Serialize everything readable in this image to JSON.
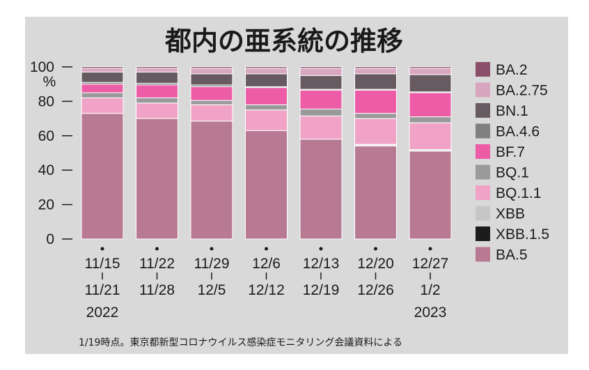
{
  "chart_data": {
    "type": "bar",
    "stacked": true,
    "title": "都内の亜系統の推移",
    "y_unit": "%",
    "ylim": [
      0,
      100
    ],
    "yticks": [
      0,
      20,
      40,
      60,
      80,
      100
    ],
    "categories": [
      {
        "start": "11/15",
        "end": "11/21",
        "year": "2022"
      },
      {
        "start": "11/22",
        "end": "11/28",
        "year": ""
      },
      {
        "start": "11/29",
        "end": "12/5",
        "year": ""
      },
      {
        "start": "12/6",
        "end": "12/12",
        "year": ""
      },
      {
        "start": "12/13",
        "end": "12/19",
        "year": ""
      },
      {
        "start": "12/20",
        "end": "12/26",
        "year": ""
      },
      {
        "start": "12/27",
        "end": "1/2",
        "year": "2023"
      }
    ],
    "series": [
      {
        "name": "BA.5",
        "color": "#b87993",
        "values": [
          73.0,
          70.0,
          68.5,
          63.0,
          58.0,
          54.0,
          51.0
        ]
      },
      {
        "name": "XBB.1.5",
        "color": "#1c1c1c",
        "values": [
          0.0,
          0.0,
          0.0,
          0.0,
          0.0,
          0.5,
          0.5
        ]
      },
      {
        "name": "XBB",
        "color": "#c6c6c6",
        "values": [
          0.0,
          0.0,
          0.0,
          0.0,
          0.0,
          0.5,
          0.5
        ]
      },
      {
        "name": "BQ.1.1",
        "color": "#f1a3c7",
        "values": [
          9.0,
          9.0,
          9.5,
          12.0,
          13.5,
          15.0,
          15.5
        ]
      },
      {
        "name": "BQ.1",
        "color": "#9a9a9a",
        "values": [
          3.0,
          3.0,
          2.5,
          3.0,
          4.0,
          3.0,
          3.5
        ]
      },
      {
        "name": "BF.7",
        "color": "#ec5ca7",
        "values": [
          5.0,
          7.5,
          8.0,
          10.0,
          11.0,
          13.5,
          14.0
        ]
      },
      {
        "name": "BA.4.6",
        "color": "#808080",
        "values": [
          1.0,
          1.0,
          1.0,
          0.5,
          0.5,
          0.5,
          0.5
        ]
      },
      {
        "name": "BN.1",
        "color": "#675b61",
        "values": [
          6.0,
          6.5,
          6.5,
          7.5,
          8.0,
          9.0,
          10.0
        ]
      },
      {
        "name": "BA.2.75",
        "color": "#d9a6bf",
        "values": [
          2.0,
          2.0,
          3.0,
          3.0,
          4.0,
          3.0,
          3.5
        ]
      },
      {
        "name": "BA.2",
        "color": "#8c4f6a",
        "values": [
          1.0,
          1.0,
          1.0,
          1.0,
          1.0,
          1.0,
          1.0
        ]
      }
    ],
    "legend_order": [
      "BA.2",
      "BA.2.75",
      "BN.1",
      "BA.4.6",
      "BF.7",
      "BQ.1",
      "BQ.1.1",
      "XBB",
      "XBB.1.5",
      "BA.5"
    ],
    "legend_position": "right",
    "grid": false
  },
  "note": "1/19時点。東京都新型コロナウイルス感染症モニタリング会議資料による"
}
